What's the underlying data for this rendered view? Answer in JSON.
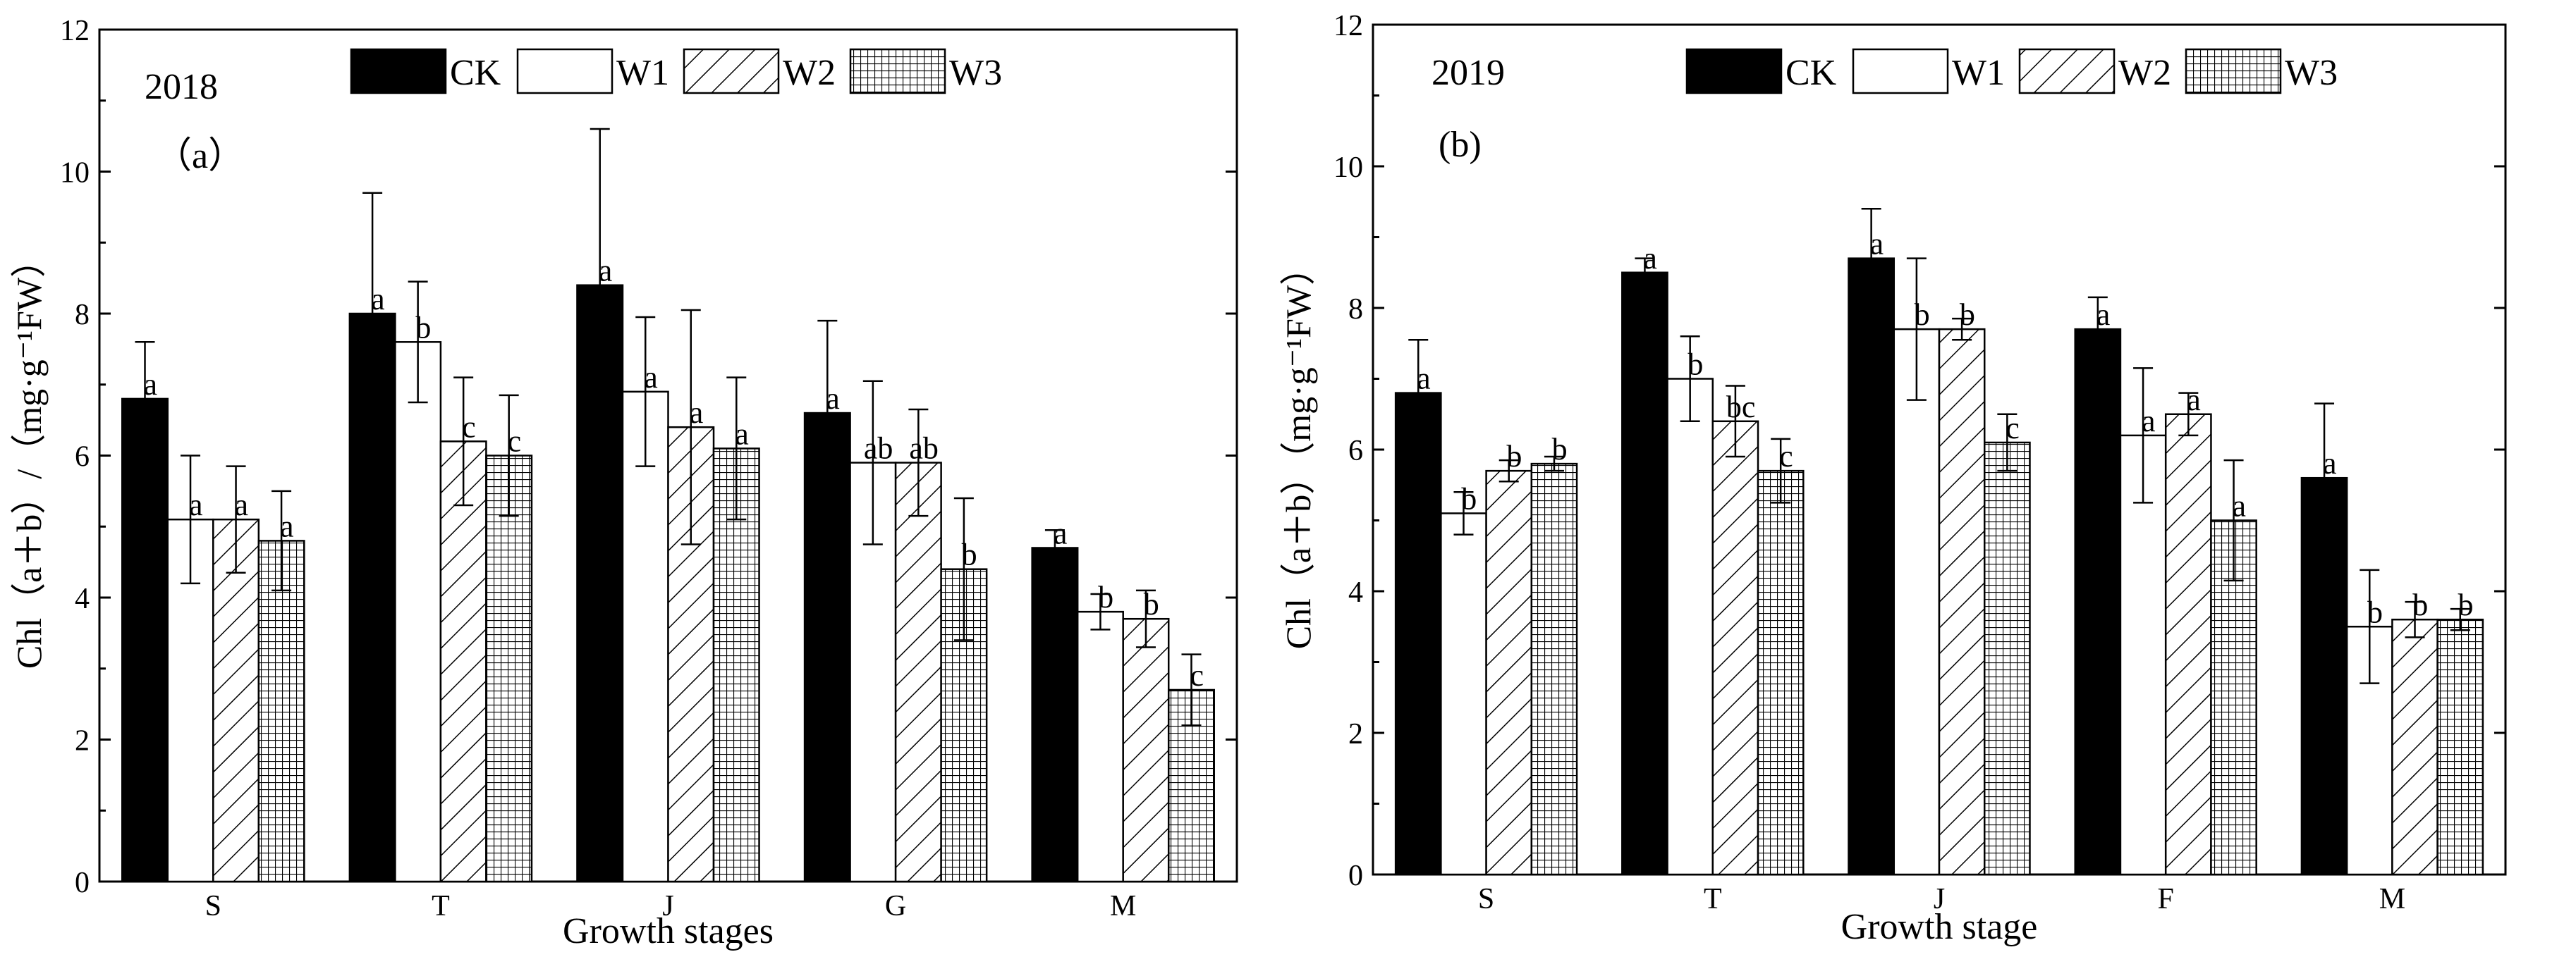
{
  "chart_data": [
    {
      "type": "bar",
      "panel_tag": "2018",
      "panel_label": "（a）",
      "xlabel": "Growth stages",
      "ylabel": "Chl（a＋b）/（mg·g⁻¹FW）",
      "ylim": [
        0,
        12
      ],
      "yticks": [
        "0",
        "2",
        "4",
        "6",
        "8",
        "10",
        "12"
      ],
      "categories": [
        "S",
        "T",
        "J",
        "G",
        "M"
      ],
      "series": [
        {
          "name": "CK",
          "values": [
            6.8,
            8.0,
            8.4,
            6.6,
            4.7
          ],
          "errors": [
            0.8,
            1.7,
            2.2,
            1.3,
            0.25
          ],
          "letters": [
            "a",
            "a",
            "a",
            "a",
            "a"
          ]
        },
        {
          "name": "W1",
          "values": [
            5.1,
            7.6,
            6.9,
            5.9,
            3.8
          ],
          "errors": [
            0.9,
            0.85,
            1.05,
            1.15,
            0.25
          ],
          "letters": [
            "a",
            "b",
            "a",
            "ab",
            "b"
          ]
        },
        {
          "name": "W2",
          "values": [
            5.1,
            6.2,
            6.4,
            5.9,
            3.7
          ],
          "errors": [
            0.75,
            0.9,
            1.65,
            0.75,
            0.4
          ],
          "letters": [
            "a",
            "c",
            "a",
            "ab",
            "b"
          ]
        },
        {
          "name": "W3",
          "values": [
            4.8,
            6.0,
            6.1,
            4.4,
            2.7
          ],
          "errors": [
            0.7,
            0.85,
            1.0,
            1.0,
            0.5
          ],
          "letters": [
            "a",
            "c",
            "a",
            "b",
            "c"
          ]
        }
      ],
      "legend": [
        "CK",
        "W1",
        "W2",
        "W3"
      ]
    },
    {
      "type": "bar",
      "panel_tag": "2019",
      "panel_label": "(b)",
      "xlabel": "Growth stage",
      "ylabel": "Chl（a＋b）（mg·g⁻¹FW）",
      "ylim": [
        0,
        12
      ],
      "yticks": [
        "0",
        "2",
        "4",
        "6",
        "8",
        "10",
        "12"
      ],
      "categories": [
        "S",
        "T",
        "J",
        "F",
        "M"
      ],
      "series": [
        {
          "name": "CK",
          "values": [
            6.8,
            8.5,
            8.7,
            7.7,
            5.6
          ],
          "errors": [
            0.75,
            0.2,
            0.7,
            0.45,
            1.05
          ],
          "letters": [
            "a",
            "a",
            "a",
            "a",
            "a"
          ]
        },
        {
          "name": "W1",
          "values": [
            5.1,
            7.0,
            7.7,
            6.2,
            3.5
          ],
          "errors": [
            0.3,
            0.6,
            1.0,
            0.95,
            0.8
          ],
          "letters": [
            "b",
            "b",
            "b",
            "a",
            "b"
          ]
        },
        {
          "name": "W2",
          "values": [
            5.7,
            6.4,
            7.7,
            6.5,
            3.6
          ],
          "errors": [
            0.15,
            0.5,
            0.15,
            0.3,
            0.25
          ],
          "letters": [
            "b",
            "bc",
            "b",
            "a",
            "b"
          ]
        },
        {
          "name": "W3",
          "values": [
            5.8,
            5.7,
            6.1,
            5.0,
            3.6
          ],
          "errors": [
            0.1,
            0.45,
            0.4,
            0.85,
            0.15
          ],
          "letters": [
            "b",
            "c",
            "c",
            "a",
            "b"
          ]
        }
      ],
      "legend": [
        "CK",
        "W1",
        "W2",
        "W3"
      ]
    }
  ]
}
